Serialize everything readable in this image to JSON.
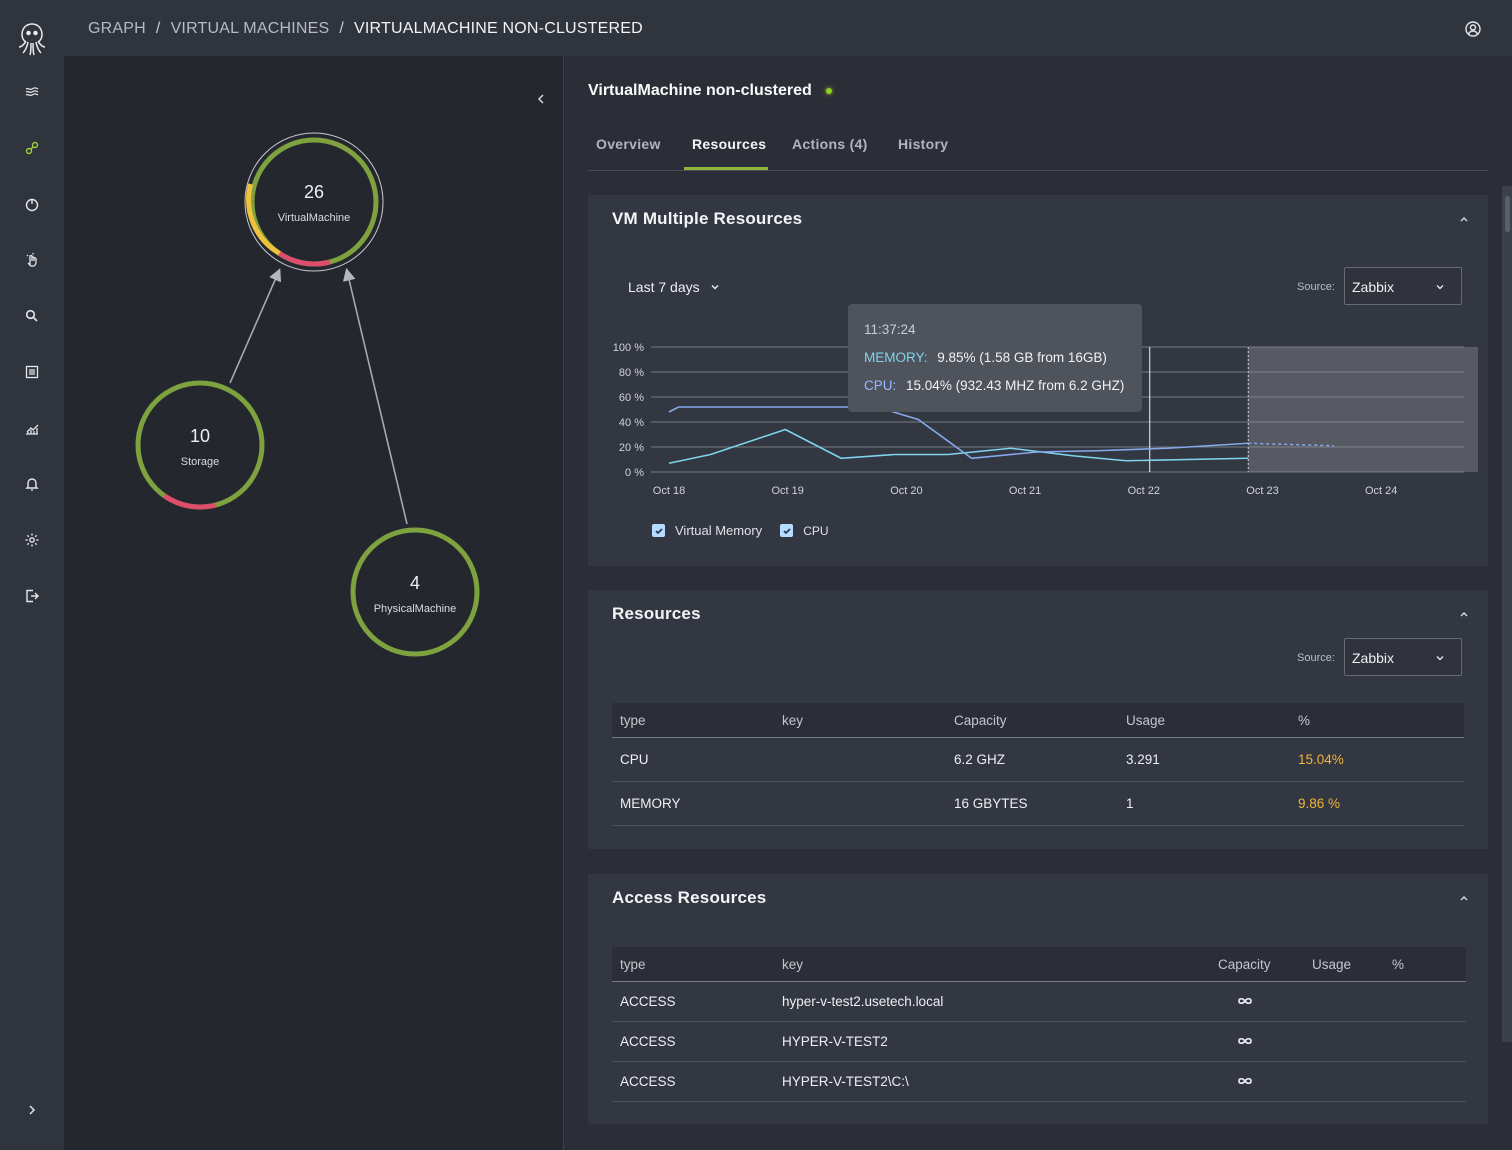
{
  "app": {
    "accent": "#9ad13c"
  },
  "nav": {
    "icons": [
      "inventory-icon",
      "graph-icon",
      "power-icon",
      "actions-icon",
      "search-icon",
      "reports-icon",
      "analytics-icon",
      "alerts-icon",
      "settings-icon",
      "logout-icon"
    ],
    "active": "graph-icon"
  },
  "breadcrumb": {
    "items": [
      "GRAPH",
      "VIRTUAL MACHINES",
      "VIRTUALMACHINE NON-CLUSTERED"
    ],
    "separator": "/"
  },
  "graph": {
    "nodes": [
      {
        "count": "26",
        "label": "VirtualMachine"
      },
      {
        "count": "10",
        "label": "Storage"
      },
      {
        "count": "4",
        "label": "PhysicalMachine"
      }
    ]
  },
  "detail": {
    "title": "VirtualMachine non-clustered",
    "status_color": "#8fd11e",
    "tabs": [
      "Overview",
      "Resources",
      "Actions (4)",
      "History"
    ],
    "active_tab": "Resources"
  },
  "vm_resources": {
    "title": "VM Multiple Resources",
    "period": "Last 7 days",
    "source_label": "Source:",
    "source_value": "Zabbix",
    "tooltip": {
      "time": "11:37:24",
      "memory_label": "MEMORY:",
      "memory_value": "9.85% (1.58 GB from 16GB)",
      "cpu_label": "CPU:",
      "cpu_value": "15.04% (932.43 MHZ from 6.2 GHZ)"
    },
    "legend": [
      "Virtual Memory",
      "CPU"
    ]
  },
  "chart_data": {
    "type": "line",
    "title": "",
    "x": [
      "Oct 18",
      "Oct 19",
      "Oct 20",
      "Oct 21",
      "Oct 22",
      "Oct 23",
      "Oct 24"
    ],
    "y_ticks": [
      "100 %",
      "80 %",
      "60 %",
      "40 %",
      "20 %",
      "0 %"
    ],
    "ylim": [
      0,
      100
    ],
    "series": [
      {
        "name": "Virtual Memory",
        "color": "#7fd3ee",
        "points": [
          [
            0,
            7
          ],
          [
            0.35,
            14
          ],
          [
            0.98,
            34
          ],
          [
            1.45,
            11
          ],
          [
            1.9,
            14
          ],
          [
            2.35,
            14
          ],
          [
            2.88,
            19
          ],
          [
            3.4,
            13
          ],
          [
            3.85,
            9
          ],
          [
            4.88,
            11
          ]
        ]
      },
      {
        "name": "CPU",
        "color": "#86a9ea",
        "points": [
          [
            0,
            48
          ],
          [
            0.08,
            52
          ],
          [
            0.6,
            52
          ],
          [
            1.55,
            52
          ],
          [
            1.75,
            52
          ],
          [
            2.1,
            42
          ],
          [
            2.55,
            11
          ],
          [
            3.1,
            16
          ],
          [
            3.6,
            17
          ],
          [
            4.2,
            19
          ],
          [
            4.88,
            23
          ]
        ]
      }
    ],
    "projection": {
      "name": "CPU",
      "points": [
        [
          4.88,
          23
        ],
        [
          5.6,
          21
        ]
      ]
    },
    "hover_x": 4.05,
    "forecast_start": 4.88,
    "grid": true
  },
  "resources": {
    "title": "Resources",
    "source_label": "Source:",
    "source_value": "Zabbix",
    "columns": [
      "type",
      "key",
      "Capacity",
      "Usage",
      "%"
    ],
    "rows": [
      {
        "type": "CPU",
        "key": "",
        "capacity": "6.2 GHZ",
        "usage": "3.291",
        "pct": "15.04%"
      },
      {
        "type": "MEMORY",
        "key": "",
        "capacity": "16 GBYTES",
        "usage": "1",
        "pct": "9.86 %"
      }
    ],
    "pct_color": "#f1b43a"
  },
  "access": {
    "title": "Access Resources",
    "columns": [
      "type",
      "key",
      "Capacity",
      "Usage",
      "%"
    ],
    "rows": [
      {
        "type": "ACCESS",
        "key": "hyper-v-test2.usetech.local",
        "capacity": "infinity-icon"
      },
      {
        "type": "ACCESS",
        "key": "HYPER-V-TEST2",
        "capacity": "infinity-icon"
      },
      {
        "type": "ACCESS",
        "key": "HYPER-V-TEST2\\C:\\",
        "capacity": "infinity-icon"
      }
    ]
  }
}
